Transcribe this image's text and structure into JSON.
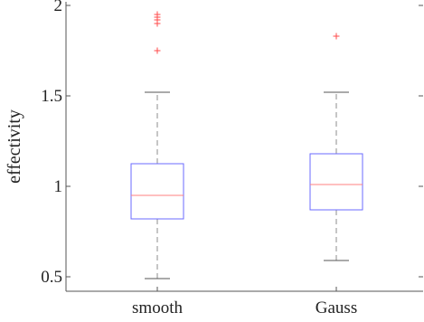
{
  "chart_data": {
    "type": "box",
    "title": "",
    "xlabel": "",
    "ylabel": "effectivity",
    "ylim": [
      0.42,
      2.02
    ],
    "yticks": [
      0.5,
      1,
      1.5,
      2
    ],
    "ytick_labels": [
      "0.5",
      "1",
      "1.5",
      "2"
    ],
    "grid": false,
    "colors": {
      "box": "#6b6bff",
      "median": "#ff8080",
      "whisker": "#8c8c8c",
      "outlier": "#ff4a4a",
      "axis": "#555555"
    },
    "categories": [
      "smooth",
      "Gauss"
    ],
    "boxes": [
      {
        "label": "smooth",
        "whisker_low": 0.49,
        "q1": 0.82,
        "median": 0.95,
        "q3": 1.125,
        "whisker_high": 1.52,
        "outliers": [
          1.75,
          1.9,
          1.92,
          1.935,
          1.95
        ]
      },
      {
        "label": "Gauss",
        "whisker_low": 0.59,
        "q1": 0.87,
        "median": 1.01,
        "q3": 1.18,
        "whisker_high": 1.52,
        "outliers": [
          1.83
        ]
      }
    ]
  }
}
